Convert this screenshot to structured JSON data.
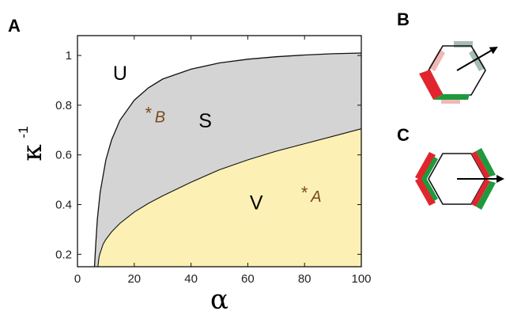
{
  "panels": {
    "a": "A",
    "b": "B",
    "c": "C"
  },
  "chart_data": {
    "type": "area",
    "xlabel": "α",
    "ylabel": "κ",
    "ylabel_superscript": "-1",
    "xlim": [
      0,
      100
    ],
    "ylim": [
      0.15,
      1.08
    ],
    "x_ticks": [
      "0",
      "20",
      "40",
      "60",
      "80",
      "100"
    ],
    "y_ticks": [
      "0.2",
      "0.4",
      "0.6",
      "0.8",
      "1"
    ],
    "x_tick_values": [
      0,
      20,
      40,
      60,
      80,
      100
    ],
    "y_tick_values": [
      0.2,
      0.4,
      0.6,
      0.8,
      1.0
    ],
    "series": [
      {
        "name": "U",
        "region": "upper boundary (S/U)",
        "x": [
          6.0,
          6.5,
          7.0,
          8.0,
          10.0,
          12.0,
          15.0,
          20.0,
          25.0,
          30.0,
          40.0,
          50.0,
          60.0,
          70.0,
          80.0,
          90.0,
          100.0
        ],
        "y": [
          0.15,
          0.25,
          0.34,
          0.45,
          0.58,
          0.66,
          0.74,
          0.82,
          0.87,
          0.905,
          0.945,
          0.97,
          0.985,
          0.995,
          1.002,
          1.007,
          1.01
        ]
      },
      {
        "name": "V",
        "region": "lower boundary (V/S)",
        "x": [
          7.2,
          7.6,
          8.0,
          9.0,
          10.0,
          12.0,
          15.0,
          20.0,
          25.0,
          30.0,
          40.0,
          50.0,
          60.0,
          70.0,
          80.0,
          90.0,
          100.0
        ],
        "y": [
          0.15,
          0.19,
          0.205,
          0.24,
          0.26,
          0.29,
          0.325,
          0.37,
          0.405,
          0.435,
          0.49,
          0.54,
          0.58,
          0.615,
          0.645,
          0.675,
          0.705
        ]
      }
    ],
    "regions": [
      {
        "label": "U",
        "x": 15,
        "y": 0.93,
        "color": "#ffffff"
      },
      {
        "label": "S",
        "x": 45,
        "y": 0.74,
        "color": "#d4d4d4"
      },
      {
        "label": "V",
        "x": 63,
        "y": 0.41,
        "color": "#fcf0b4"
      }
    ],
    "points": [
      {
        "label": "A",
        "x": 80,
        "y": 0.45
      },
      {
        "label": "B",
        "x": 25,
        "y": 0.77
      }
    ]
  },
  "diagram_b": {
    "colors": {
      "red": "#e0262c",
      "green": "#1e9a3c",
      "light_red": "#f0b8b4",
      "light_gray_green": "#a7bcb4"
    }
  },
  "diagram_c": {
    "colors": {
      "red": "#e0262c",
      "green": "#1e9a3c"
    }
  }
}
